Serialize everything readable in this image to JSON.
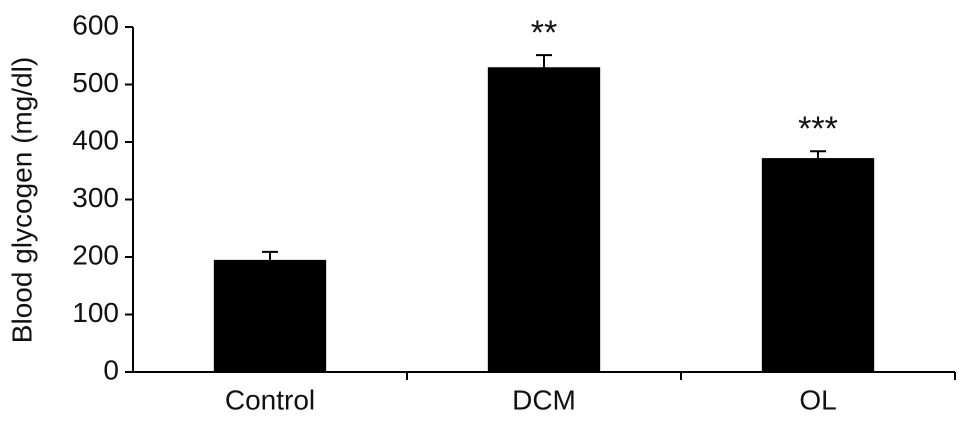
{
  "chart_data": {
    "type": "bar",
    "y_label": "Blood glycogen (mg/dl)",
    "categories": [
      "Control",
      "DCM",
      "OL"
    ],
    "values": [
      195,
      530,
      372
    ],
    "errors": [
      14,
      21,
      12
    ],
    "annotations": [
      null,
      "**",
      "***"
    ],
    "color": "#000000",
    "ylim": [
      0,
      600
    ],
    "yticks": [
      0,
      100,
      200,
      300,
      400,
      500,
      600
    ],
    "grid": false
  }
}
